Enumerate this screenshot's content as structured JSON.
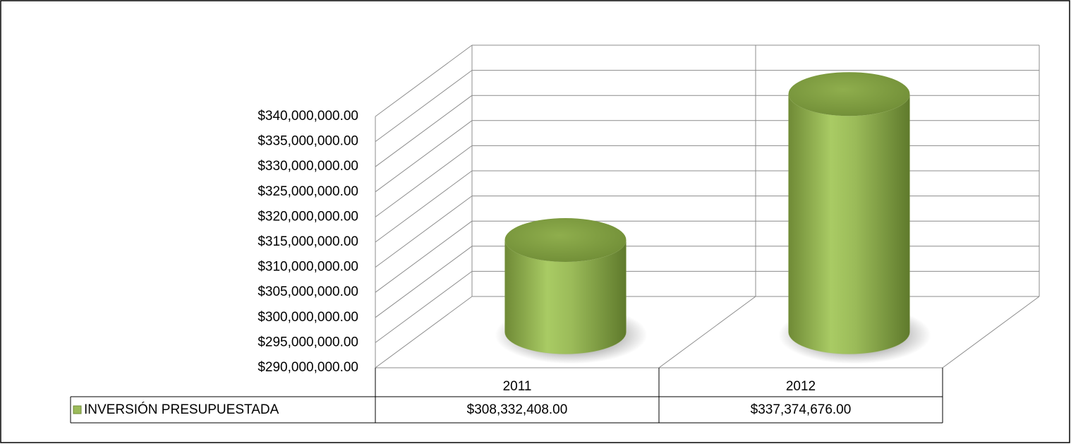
{
  "chart_data": {
    "type": "bar",
    "categories": [
      "2011",
      "2012"
    ],
    "series": [
      {
        "name": "INVERSIÓN PRESUPUESTADA",
        "color": "#9bbb59",
        "values": [
          308332408,
          337374676
        ],
        "value_labels": [
          "$308,332,408.00",
          "$337,374,676.00"
        ]
      }
    ],
    "ylim": [
      290000000,
      340000000
    ],
    "yticks": [
      {
        "value": 290000000,
        "label": "$290,000,000.00"
      },
      {
        "value": 295000000,
        "label": "$295,000,000.00"
      },
      {
        "value": 300000000,
        "label": "$300,000,000.00"
      },
      {
        "value": 305000000,
        "label": "$305,000,000.00"
      },
      {
        "value": 310000000,
        "label": "$310,000,000.00"
      },
      {
        "value": 315000000,
        "label": "$315,000,000.00"
      },
      {
        "value": 320000000,
        "label": "$320,000,000.00"
      },
      {
        "value": 325000000,
        "label": "$325,000,000.00"
      },
      {
        "value": 330000000,
        "label": "$330,000,000.00"
      },
      {
        "value": 335000000,
        "label": "$335,000,000.00"
      },
      {
        "value": 340000000,
        "label": "$340,000,000.00"
      }
    ],
    "grid": true,
    "data_table": true
  }
}
